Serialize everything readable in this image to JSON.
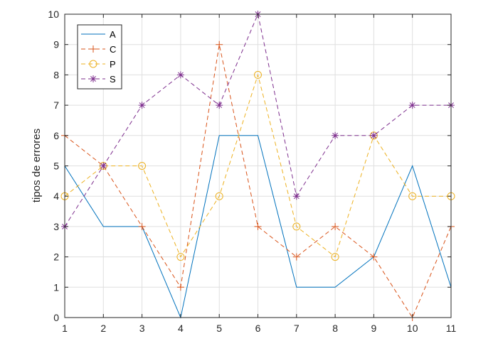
{
  "chart_data": {
    "type": "line",
    "title": "",
    "xlabel": "",
    "ylabel": "tipos de errores",
    "x": [
      1,
      2,
      3,
      4,
      5,
      6,
      7,
      8,
      9,
      10,
      11
    ],
    "xlim": [
      1,
      11
    ],
    "ylim": [
      0,
      10
    ],
    "xticks": [
      "1",
      "2",
      "3",
      "4",
      "5",
      "6",
      "7",
      "8",
      "9",
      "10",
      "11"
    ],
    "yticks": [
      "0",
      "1",
      "2",
      "3",
      "4",
      "5",
      "6",
      "7",
      "8",
      "9",
      "10"
    ],
    "grid": true,
    "legend_position": "top-left",
    "series": [
      {
        "name": "A",
        "color": "#0072BD",
        "line": "solid",
        "marker": "none",
        "values": [
          5,
          3,
          3,
          0,
          6,
          6,
          1,
          1,
          2,
          5,
          1
        ]
      },
      {
        "name": "C",
        "color": "#D95319",
        "line": "dashed",
        "marker": "plus",
        "values": [
          6,
          5,
          3,
          1,
          9,
          3,
          2,
          3,
          2,
          0,
          3
        ]
      },
      {
        "name": "P",
        "color": "#EDB120",
        "line": "dashed",
        "marker": "circle",
        "values": [
          4,
          5,
          5,
          2,
          4,
          8,
          3,
          2,
          6,
          4,
          4
        ]
      },
      {
        "name": "S",
        "color": "#7E2F8E",
        "line": "dashed",
        "marker": "asterisk",
        "values": [
          3,
          5,
          7,
          8,
          7,
          10,
          4,
          6,
          6,
          7,
          7
        ]
      }
    ]
  }
}
